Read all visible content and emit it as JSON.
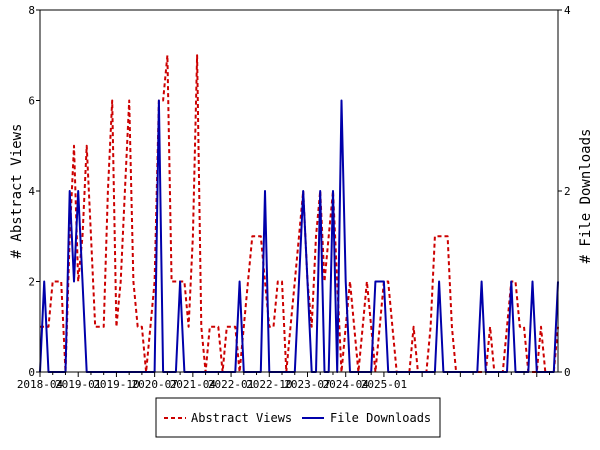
{
  "chart_data": {
    "type": "line",
    "title": "",
    "xlabel": "",
    "ylabel_left": "# Abstract Views",
    "ylabel_right": "# File Downloads",
    "ylim_left": [
      0,
      8
    ],
    "ylim_right": [
      0,
      4
    ],
    "yticks_left": [
      "0",
      "2",
      "4",
      "6",
      "8"
    ],
    "yticks_right": [
      "0",
      "2",
      "4"
    ],
    "x_tick_labels": [
      "2018-04",
      "2019-01",
      "2019-10",
      "2020-07",
      "2021-04",
      "2022-01",
      "2022-10",
      "2023-07",
      "2024-04",
      "2025-01"
    ],
    "x_months_start": "2018-04",
    "grid": false,
    "legend_position": "bottom-center",
    "series": [
      {
        "name": "Abstract Views",
        "axis": "left",
        "color": "#cc0000",
        "style": "dashed",
        "values": [
          1,
          1,
          1,
          2,
          2,
          2,
          0,
          3,
          5,
          2,
          3,
          5,
          3,
          1,
          1,
          1,
          4,
          6,
          1,
          2,
          4,
          6,
          2,
          1,
          1,
          0,
          1,
          2,
          6,
          6,
          7,
          2,
          2,
          2,
          2,
          1,
          3,
          7,
          1,
          0,
          1,
          1,
          1,
          0,
          1,
          1,
          1,
          0,
          1,
          2,
          3,
          3,
          3,
          2,
          1,
          1,
          2,
          2,
          0,
          1,
          2,
          3,
          4,
          2,
          1,
          3,
          4,
          2,
          3,
          4,
          2,
          0,
          1,
          2,
          1,
          0,
          1,
          2,
          1,
          0,
          1,
          2,
          2,
          1,
          0,
          0,
          0,
          0,
          1,
          0,
          0,
          0,
          1,
          3,
          3,
          3,
          3,
          1,
          0,
          0,
          0,
          0,
          0,
          0,
          0,
          0,
          1,
          0,
          0,
          0,
          1,
          2,
          2,
          1,
          1,
          0,
          0,
          0,
          1,
          0,
          0,
          0,
          1
        ]
      },
      {
        "name": "File Downloads",
        "axis": "right",
        "color": "#0000aa",
        "style": "solid",
        "values": [
          0,
          1,
          0,
          0,
          0,
          0,
          0,
          2,
          1,
          2,
          1,
          0,
          0,
          0,
          0,
          0,
          0,
          0,
          0,
          0,
          0,
          0,
          0,
          0,
          0,
          0,
          0,
          0,
          3,
          0,
          0,
          0,
          0,
          1,
          0,
          0,
          0,
          0,
          0,
          0,
          0,
          0,
          0,
          0,
          0,
          0,
          0,
          1,
          0,
          0,
          0,
          0,
          0,
          2,
          0,
          0,
          0,
          0,
          0,
          0,
          0,
          1,
          2,
          1,
          0,
          0,
          2,
          0,
          0,
          2,
          0,
          3,
          1,
          0,
          0,
          0,
          0,
          0,
          0,
          1,
          1,
          1,
          0,
          0,
          0,
          0,
          0,
          0,
          0,
          0,
          0,
          0,
          0,
          0,
          1,
          0,
          0,
          0,
          0,
          0,
          0,
          0,
          0,
          0,
          1,
          0,
          0,
          0,
          0,
          0,
          0,
          1,
          0,
          0,
          0,
          0,
          1,
          0,
          0,
          0,
          0,
          0,
          1
        ]
      }
    ]
  },
  "legend": {
    "items": [
      {
        "label": "Abstract Views",
        "color": "#cc0000",
        "style": "dashed"
      },
      {
        "label": "File Downloads",
        "color": "#0000aa",
        "style": "solid"
      }
    ]
  }
}
